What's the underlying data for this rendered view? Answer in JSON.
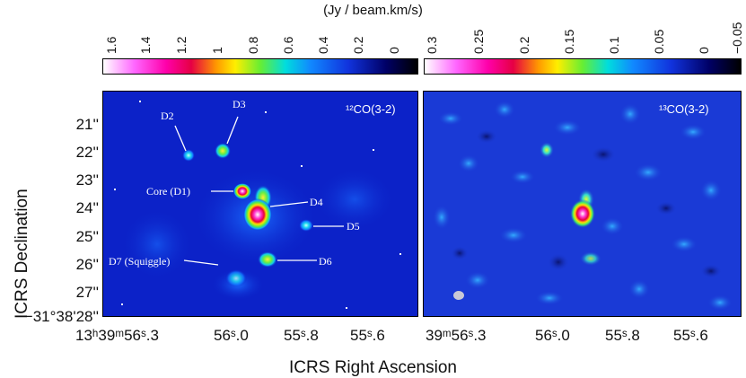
{
  "colorbar_unit": "(Jy / beam.km/s)",
  "colorbar_left_ticks": [
    "1.6",
    "1.4",
    "1.2",
    "1",
    "0.8",
    "0.6",
    "0.4",
    "0.2",
    "0"
  ],
  "colorbar_right_ticks": [
    "0.3",
    "0.25",
    "0.2",
    "0.15",
    "0.1",
    "0.05",
    "0",
    "−0.05"
  ],
  "left_panel_label": "¹²CO(3-2)",
  "right_panel_label": "¹³CO(3-2)",
  "dec_ticks": [
    "21''",
    "22''",
    "23''",
    "24''",
    "25''",
    "26''",
    "27''",
    "−31°38'28''"
  ],
  "ra_ticks_left": [
    "13ʰ39ᵐ56ˢ.3",
    "56ˢ.0",
    "55ˢ.8",
    "55ˢ.6"
  ],
  "ra_ticks_right": [
    "39ᵐ56ˢ.3",
    "56ˢ.0",
    "55ˢ.8",
    "55ˢ.6"
  ],
  "y_axis_title": "ICRS  Declination",
  "x_axis_title": "ICRS  Right Ascension",
  "annotations": [
    "D2",
    "D3",
    "Core (D1)",
    "D4",
    "D5",
    "D7 (Squiggle)",
    "D6"
  ],
  "colors": {
    "background_left": "#0c22c8",
    "background_right": "#1a3ad6"
  }
}
